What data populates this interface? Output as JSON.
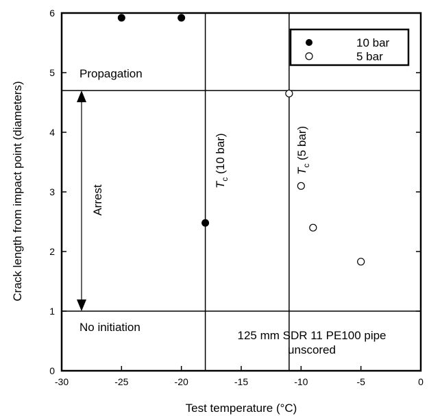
{
  "chart_data": {
    "type": "scatter",
    "xlabel": "Test temperature (°C)",
    "ylabel": "Crack length from impact point (diameters)",
    "xlim": [
      -30,
      0
    ],
    "ylim": [
      0,
      6
    ],
    "x_ticks": [
      -30,
      -25,
      -20,
      -15,
      -10,
      -5,
      0
    ],
    "y_ticks": [
      0,
      1,
      2,
      3,
      4,
      5,
      6
    ],
    "x_tick_labels": [
      "-30",
      "-25",
      "-20",
      "-15",
      "-10",
      "-5",
      "0"
    ],
    "y_tick_labels": [
      "0",
      "1",
      "2",
      "3",
      "4",
      "5",
      "6"
    ],
    "series": [
      {
        "name": "10 bar",
        "marker": "filled-circle",
        "points": [
          {
            "x": -25,
            "y": 5.92
          },
          {
            "x": -20,
            "y": 5.92
          },
          {
            "x": -18,
            "y": 2.48
          }
        ]
      },
      {
        "name": "5 bar",
        "marker": "open-circle",
        "points": [
          {
            "x": -11,
            "y": 4.65
          },
          {
            "x": -10,
            "y": 3.1
          },
          {
            "x": -9,
            "y": 2.4
          },
          {
            "x": -5,
            "y": 1.83
          }
        ]
      }
    ],
    "horizontal_lines": [
      {
        "y": 4.7
      },
      {
        "y": 1.0
      }
    ],
    "vertical_lines": [
      {
        "x": -18,
        "label_main": "T",
        "label_sub": "c",
        "label_rest": " (10 bar)"
      },
      {
        "x": -11,
        "label_main": "T",
        "label_sub": "c",
        "label_rest": " (5 bar)"
      }
    ],
    "regions": {
      "propagation": "Propagation",
      "arrest": "Arrest",
      "no_initiation": "No initiation"
    },
    "annotation": {
      "line1": "125 mm SDR 11 PE100 pipe",
      "line2": "unscored"
    },
    "legend_position": "top-right",
    "grid": false
  }
}
